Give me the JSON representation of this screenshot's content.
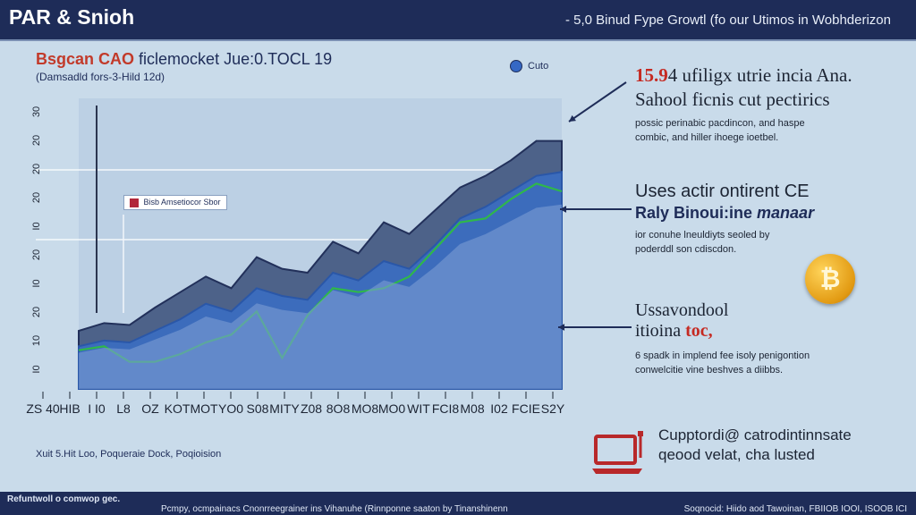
{
  "header": {
    "brand": "PAR & Snioh",
    "headline": "- 5,0 Binud Fype Growtl (fo our Utimos in Wobhderizon"
  },
  "chart_text": {
    "title_accent": "Bsgcan CAO",
    "title_rest": "ficlemocket Jue:0.TOCL 19",
    "subtitle": "(Damsadld fors-3-Hild 12d)",
    "legend_label": "Cuto",
    "inset_label": "Bisb Amsetiocor Sbor",
    "note": "Xuit 5.Hit Loo, Poqueraie Dock, Poqioision"
  },
  "chart_data": {
    "type": "area",
    "title": "Bsgcan CAO ficlemocket Jue:0.TOCL 19",
    "subtitle": "(Damsadld fors-3-Hild 12d)",
    "categories": [
      "ZS 40",
      "HIB",
      "I I0",
      "L8",
      "OZ",
      "KOT",
      "MOT",
      "YO0",
      "S08",
      "MITY",
      "Z08",
      "8O8",
      "MO8",
      "MO0",
      "WIT",
      "FCI8",
      "M08",
      "I02",
      "FCIE",
      "S2Y"
    ],
    "series": [
      {
        "name": "Cuto",
        "values": [
          30,
          34,
          33,
          42,
          50,
          58,
          52,
          68,
          62,
          60,
          76,
          70,
          86,
          80,
          92,
          104,
          110,
          118,
          128,
          128
        ]
      },
      {
        "values": [
          22,
          25,
          24,
          30,
          36,
          44,
          40,
          52,
          48,
          46,
          60,
          56,
          66,
          62,
          74,
          88,
          94,
          102,
          110,
          112
        ]
      },
      {
        "values": [
          20,
          22,
          14,
          14,
          18,
          24,
          28,
          40,
          16,
          38,
          52,
          50,
          52,
          58,
          72,
          86,
          88,
          98,
          106,
          102
        ]
      }
    ],
    "ylim": [
      0,
      150
    ],
    "y_ticks": [
      "30",
      "20",
      "20",
      "20",
      "I0",
      "20",
      "I0",
      "20",
      "10",
      "I0"
    ],
    "grid": "horizontal",
    "legend_position": "top-right"
  },
  "panels": {
    "p1": {
      "number": "15.9",
      "rest": "4 ufiligx utrie incia Ana.",
      "line2": "Sahool ficnis cut pectirics",
      "small1": "possic perinabic pacdincon, and haspe",
      "small2": "combic, and hiller ihoege ioetbel."
    },
    "p2": {
      "h1": "Uses actir ontirent CE",
      "h2_bold": "Raly Binoui:ine",
      "h2_italic": "manaar",
      "small1": "ior conuhe lneuldiyts seoled by",
      "small2": "poderddl son cdiscdon."
    },
    "p3": {
      "h1": "Ussavondool",
      "h2": "itioina",
      "h2_red": "toc,",
      "small1": "6 spadk in implend fee isoly penigontion",
      "small2": "conwelcitie vine beshves a diibbs."
    },
    "p4": {
      "line1": "Cupptordi@ catrodintinnsate",
      "line2": "qeood velat, cha lusted"
    },
    "coin_symbol": "₿"
  },
  "footer": {
    "left": "Refuntwoll o comwop gec.",
    "middle": "Pcmpy, ocmpainacs Cnonrreegrainer ins Vihanuhe (Rinnponne saaton by Tinanshinenn",
    "right": "Soqnocid: Hiido aod Tawoinan, FBIIOB IOOI, ISOOB ICI"
  },
  "colors": {
    "header_bg": "#1e2c58",
    "background": "#c9dbea",
    "accent_red": "#c52a22",
    "area_dark": "#4a5f86",
    "area_blue": "#3568c4",
    "line_green": "#2fb84a"
  }
}
